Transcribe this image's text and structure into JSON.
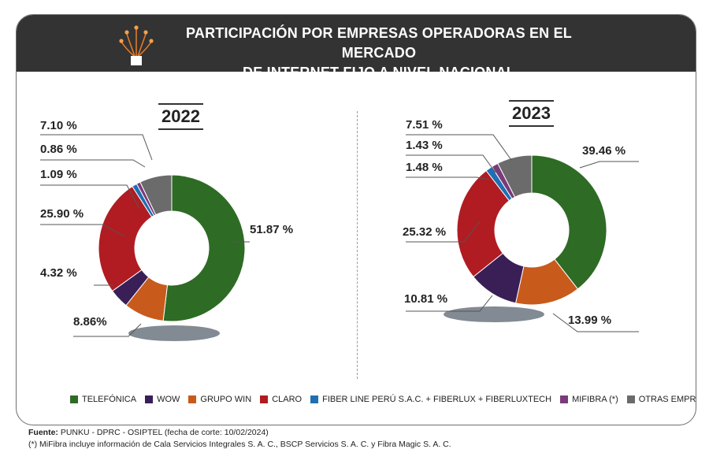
{
  "header": {
    "title_line1": "PARTICIPACIÓN POR EMPRESAS OPERADORAS EN EL MERCADO",
    "title_line2": "DE INTERNET FIJO A NIVEL NACIONAL"
  },
  "colors": {
    "header_bg": "#333333",
    "TELEFÓNICA": "#2e6b25",
    "WOW": "#3a1f57",
    "GRUPO WIN": "#c85a1c",
    "CLARO": "#b01c22",
    "FIBER LINE PERÚ S.A.C. + FIBERLUX + FIBERLUXTECH": "#1f6fb2",
    "MIFIBRA (*)": "#7a3b7a",
    "OTRAS EMPRESAS": "#6b6b6b"
  },
  "legend": [
    {
      "label": "TELEFÓNICA",
      "color": "#2e6b25"
    },
    {
      "label": "WOW",
      "color": "#3a1f57"
    },
    {
      "label": "GRUPO WIN",
      "color": "#c85a1c"
    },
    {
      "label": "CLARO",
      "color": "#b01c22"
    },
    {
      "label": "FIBER LINE PERÚ S.A.C. + FIBERLUX + FIBERLUXTECH",
      "color": "#1f6fb2"
    },
    {
      "label": "MIFIBRA (*)",
      "color": "#7a3b7a"
    },
    {
      "label": "OTRAS EMPRESAS",
      "color": "#6b6b6b"
    }
  ],
  "chart_data": [
    {
      "type": "pie",
      "title": "2022",
      "categories": [
        "TELEFÓNICA",
        "GRUPO WIN",
        "WOW",
        "CLARO",
        "FIBER LINE PERÚ S.A.C. + FIBERLUX + FIBERLUXTECH",
        "MIFIBRA (*)",
        "OTRAS EMPRESAS"
      ],
      "values": [
        51.87,
        8.86,
        4.32,
        25.9,
        1.09,
        0.86,
        7.1
      ],
      "labels": [
        "51.87 %",
        "8.86%",
        "4.32 %",
        "25.90 %",
        "1.09 %",
        "0.86 %",
        "7.10 %"
      ]
    },
    {
      "type": "pie",
      "title": "2023",
      "categories": [
        "TELEFÓNICA",
        "GRUPO WIN",
        "WOW",
        "CLARO",
        "FIBER LINE PERÚ S.A.C. + FIBERLUX + FIBERLUXTECH",
        "MIFIBRA (*)",
        "OTRAS EMPRESAS"
      ],
      "values": [
        39.46,
        13.99,
        10.81,
        25.32,
        1.48,
        1.43,
        7.51
      ],
      "labels": [
        "39.46 %",
        "13.99 %",
        "10.81 %",
        "25.32 %",
        "1.48 %",
        "1.43 %",
        "7.51 %"
      ]
    }
  ],
  "footnotes": {
    "source_label": "Fuente:",
    "source_text": " PUNKU - DPRC - OSIPTEL (fecha de corte: 10/02/2024)",
    "note": "(*) MiFibra incluye información de Cala Servicios Integrales S. A. C., BSCP Servicios S. A. C. y Fibra Magic S. A. C."
  }
}
